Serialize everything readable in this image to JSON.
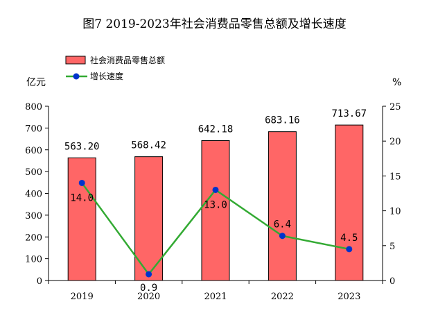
{
  "chart_data": {
    "type": "bar",
    "title": "图7 2019-2023年社会消费品零售总额及增长速度",
    "ylabel_left": "亿元",
    "ylabel_right": "%",
    "categories": [
      "2019",
      "2020",
      "2021",
      "2022",
      "2023"
    ],
    "series": [
      {
        "name": "社会消费品零售总额",
        "type": "bar",
        "axis": "left",
        "values": [
          563.2,
          568.42,
          642.18,
          683.16,
          713.67
        ],
        "labels": [
          "563.20",
          "568.42",
          "642.18",
          "683.16",
          "713.67"
        ],
        "color": "#ff6666"
      },
      {
        "name": "增长速度",
        "type": "line",
        "axis": "right",
        "values": [
          14.0,
          0.9,
          13.0,
          6.4,
          4.5
        ],
        "labels": [
          "14.0",
          "0.9",
          "13.0",
          "6.4",
          "4.5"
        ],
        "color": "#33aa33",
        "marker_color": "#0033cc"
      }
    ],
    "ylim_left": [
      0,
      800
    ],
    "yticks_left": [
      "0",
      "100",
      "200",
      "300",
      "400",
      "500",
      "600",
      "700",
      "800"
    ],
    "ylim_right": [
      0,
      25
    ],
    "yticks_right": [
      "0",
      "5",
      "10",
      "15",
      "20",
      "25"
    ],
    "legend": "top-left",
    "grid": false
  }
}
